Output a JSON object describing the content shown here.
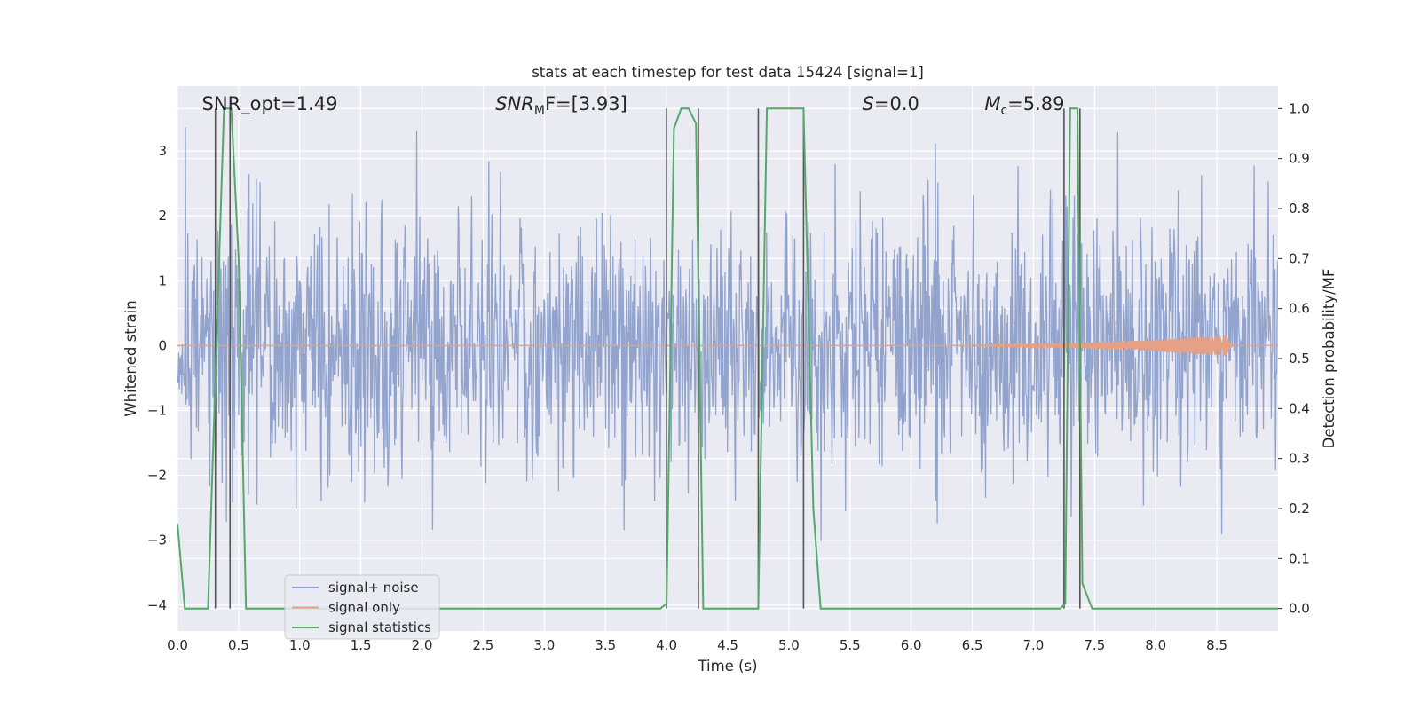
{
  "chart_data": {
    "type": "line",
    "title": "stats at each timestep for test data 15424 [signal=1]",
    "xlabel": "Time (s)",
    "ylabel": "Whitened strain",
    "ylabel_right": "Detection probability/MF",
    "xlim": [
      0,
      9.0
    ],
    "ylim": [
      -4.4,
      4.0
    ],
    "ylim_right": [
      -0.045,
      1.045
    ],
    "x_ticks": [
      "0.0",
      "0.5",
      "1.0",
      "1.5",
      "2.0",
      "2.5",
      "3.0",
      "3.5",
      "4.0",
      "4.5",
      "5.0",
      "5.5",
      "6.0",
      "6.5",
      "7.0",
      "7.5",
      "8.0",
      "8.5"
    ],
    "y_ticks": [
      "3",
      "2",
      "1",
      "0",
      "−1",
      "−2",
      "−3",
      "−4"
    ],
    "y_ticks_right": [
      "1.0",
      "0.9",
      "0.8",
      "0.7",
      "0.6",
      "0.5",
      "0.4",
      "0.3",
      "0.2",
      "0.1",
      "0.0"
    ],
    "grid": true,
    "legend_position": "lower-left",
    "annotations": [
      {
        "text": "SNR_opt=1.49",
        "x": 0.2
      },
      {
        "html": "SNR<tspan font-size='14' dy='5'>M</tspan><tspan dy='-5'>F=[3.93]</tspan>",
        "plain": "SNR_MF=[3.93]",
        "x": 2.6,
        "italic_prefix": true
      },
      {
        "html": "S=0.0",
        "plain": "S=0.0",
        "x": 5.6,
        "italic_prefix": true
      },
      {
        "html": "M<tspan font-size='14' dy='5'>c</tspan><tspan dy='-5'>=5.89</tspan>",
        "plain": "M_c=5.89",
        "x": 6.6,
        "italic_prefix": true
      }
    ],
    "series": [
      {
        "name": "signal+ noise",
        "axis": "left",
        "color": "#8da0cb",
        "noise_sigma": 1.0,
        "x_range": [
          0,
          9.0
        ],
        "samples": 1800
      },
      {
        "name": "signal only",
        "axis": "left",
        "color": "#e5a085",
        "chirp": {
          "start": 6.0,
          "end": 8.65,
          "max_amp": 0.17
        }
      },
      {
        "name": "signal statistics",
        "axis": "right",
        "color": "#55a868",
        "x": [
          0.0,
          0.06,
          0.1,
          0.25,
          0.38,
          0.44,
          0.5,
          0.56,
          3.95,
          4.0,
          4.06,
          4.12,
          4.18,
          4.24,
          4.3,
          4.34,
          4.75,
          4.82,
          5.12,
          5.2,
          5.26,
          7.22,
          7.26,
          7.3,
          7.36,
          7.4,
          7.48,
          9.0
        ],
        "y": [
          0.17,
          0.0,
          0.0,
          0.0,
          1.0,
          1.0,
          0.7,
          0.0,
          0.0,
          0.01,
          0.96,
          1.0,
          1.0,
          0.97,
          0.0,
          0.0,
          0.0,
          1.0,
          1.0,
          0.2,
          0.0,
          0.0,
          0.01,
          1.0,
          1.0,
          0.05,
          0.0,
          0.0
        ]
      }
    ],
    "vertical_lines": [
      0.31,
      0.43,
      4.0,
      4.26,
      4.75,
      5.12,
      7.25,
      7.38
    ],
    "vline_color": "#555555"
  }
}
